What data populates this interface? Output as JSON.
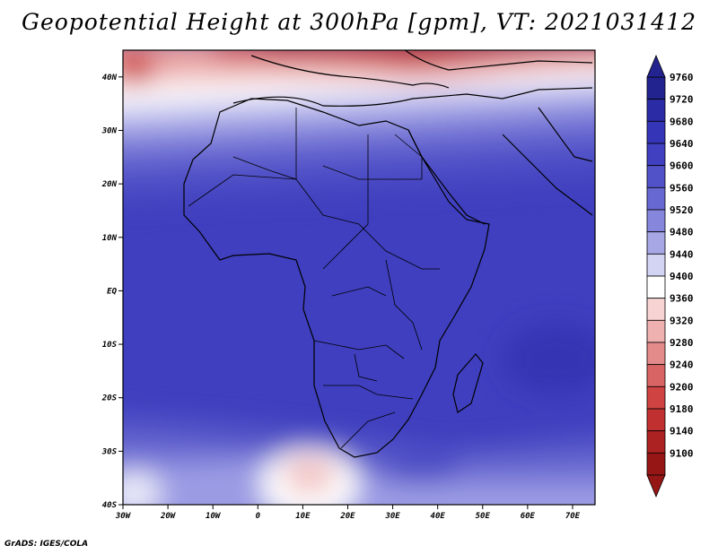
{
  "title": "Geopotential Height at 300hPa [gpm], VT: 2021031412",
  "credit": "GrADS: IGES/COLA",
  "map": {
    "lat_labels": [
      "40N",
      "30N",
      "20N",
      "10N",
      "EQ",
      "10S",
      "20S",
      "30S",
      "40S"
    ],
    "lat_values": [
      40,
      30,
      20,
      10,
      0,
      -10,
      -20,
      -30,
      -40
    ],
    "lon_labels": [
      "30W",
      "20W",
      "10W",
      "0",
      "10E",
      "20E",
      "30E",
      "40E",
      "50E",
      "60E",
      "70E"
    ],
    "lon_values": [
      -30,
      -20,
      -10,
      0,
      10,
      20,
      30,
      40,
      50,
      60,
      70
    ],
    "lon_range": [
      -30,
      75
    ],
    "lat_range": [
      -40,
      45
    ]
  },
  "colorbar": {
    "labels": [
      "9760",
      "9720",
      "9680",
      "9640",
      "9600",
      "9560",
      "9520",
      "9480",
      "9440",
      "9400",
      "9360",
      "9320",
      "9280",
      "9240",
      "9200",
      "9180",
      "9140",
      "9100"
    ],
    "colors": [
      "#23238f",
      "#2b2ba6",
      "#3535b8",
      "#4040c0",
      "#5252c8",
      "#6868d2",
      "#8686dc",
      "#a7a7e6",
      "#d3d3f3",
      "#ffffff",
      "#f7d3d3",
      "#efb0b0",
      "#e38a8a",
      "#d86464",
      "#cf4343",
      "#c13030",
      "#ac2222",
      "#961616"
    ]
  }
}
